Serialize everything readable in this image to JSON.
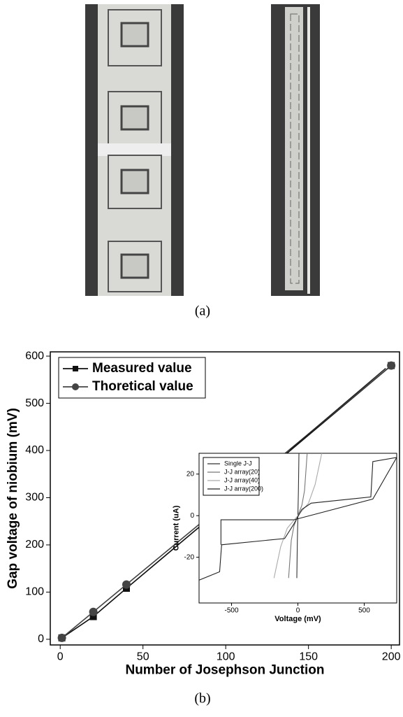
{
  "panel_a": {
    "caption": "(a)"
  },
  "chart_data": [
    {
      "type": "line",
      "xlabel": "Number of Josephson Junction",
      "ylabel": "Gap voltage of niobium (mV)",
      "xlim": [
        -6,
        205
      ],
      "ylim": [
        -12,
        609
      ],
      "xticks": [
        0,
        50,
        100,
        150,
        200
      ],
      "yticks": [
        0,
        100,
        200,
        300,
        400,
        500,
        600
      ],
      "grid": false,
      "legend": "upper left",
      "series": [
        {
          "name": "Measured value",
          "color": "#111111",
          "marker": "square",
          "x": [
            1,
            20,
            40,
            200
          ],
          "values": [
            3,
            48,
            108,
            580
          ]
        },
        {
          "name": "Thoretical value",
          "color": "#444444",
          "marker": "circle",
          "x": [
            1,
            20,
            40,
            200
          ],
          "values": [
            3,
            58,
            116,
            580
          ]
        }
      ]
    },
    {
      "type": "line",
      "xlabel": "Voltage (mV)",
      "ylabel": "Current (uA)",
      "xlim": [
        -745,
        745
      ],
      "ylim": [
        -42,
        30
      ],
      "xticks": [
        -500,
        0,
        500
      ],
      "yticks": [
        -20,
        0,
        20
      ],
      "grid": false,
      "legend": "upper left",
      "series": [
        {
          "name": "Single J-J",
          "color": "#333333",
          "marker": "none",
          "x": [
            -8,
            -4,
            -2,
            0,
            2,
            4,
            8
          ],
          "values": [
            -30,
            -12,
            -6,
            0,
            6,
            12,
            30
          ]
        },
        {
          "name": "J-J array(20)",
          "color": "#777777",
          "marker": "none",
          "x": [
            -70,
            -50,
            -30,
            0,
            30,
            50,
            70
          ],
          "values": [
            -30,
            -12,
            -5,
            0,
            5,
            12,
            30
          ]
        },
        {
          "name": "J-J array(40)",
          "color": "#aaaaaa",
          "marker": "none",
          "x": [
            -180,
            -130,
            -80,
            0,
            80,
            130,
            180
          ],
          "values": [
            -30,
            -15,
            -6,
            0,
            6,
            15,
            30
          ]
        },
        {
          "name": "J-J array(200)",
          "color": "#222222",
          "marker": "none",
          "x": [
            -745,
            -590,
            -575,
            -100,
            -30,
            30,
            100,
            550,
            565,
            745,
            565,
            30,
            -30,
            -580,
            -580
          ],
          "values": [
            -31,
            -27,
            -14,
            -11,
            -4,
            3,
            6,
            9,
            26,
            28,
            8,
            -1,
            -2,
            -2,
            -14
          ]
        }
      ]
    }
  ],
  "panel_b": {
    "caption": "(b)"
  }
}
